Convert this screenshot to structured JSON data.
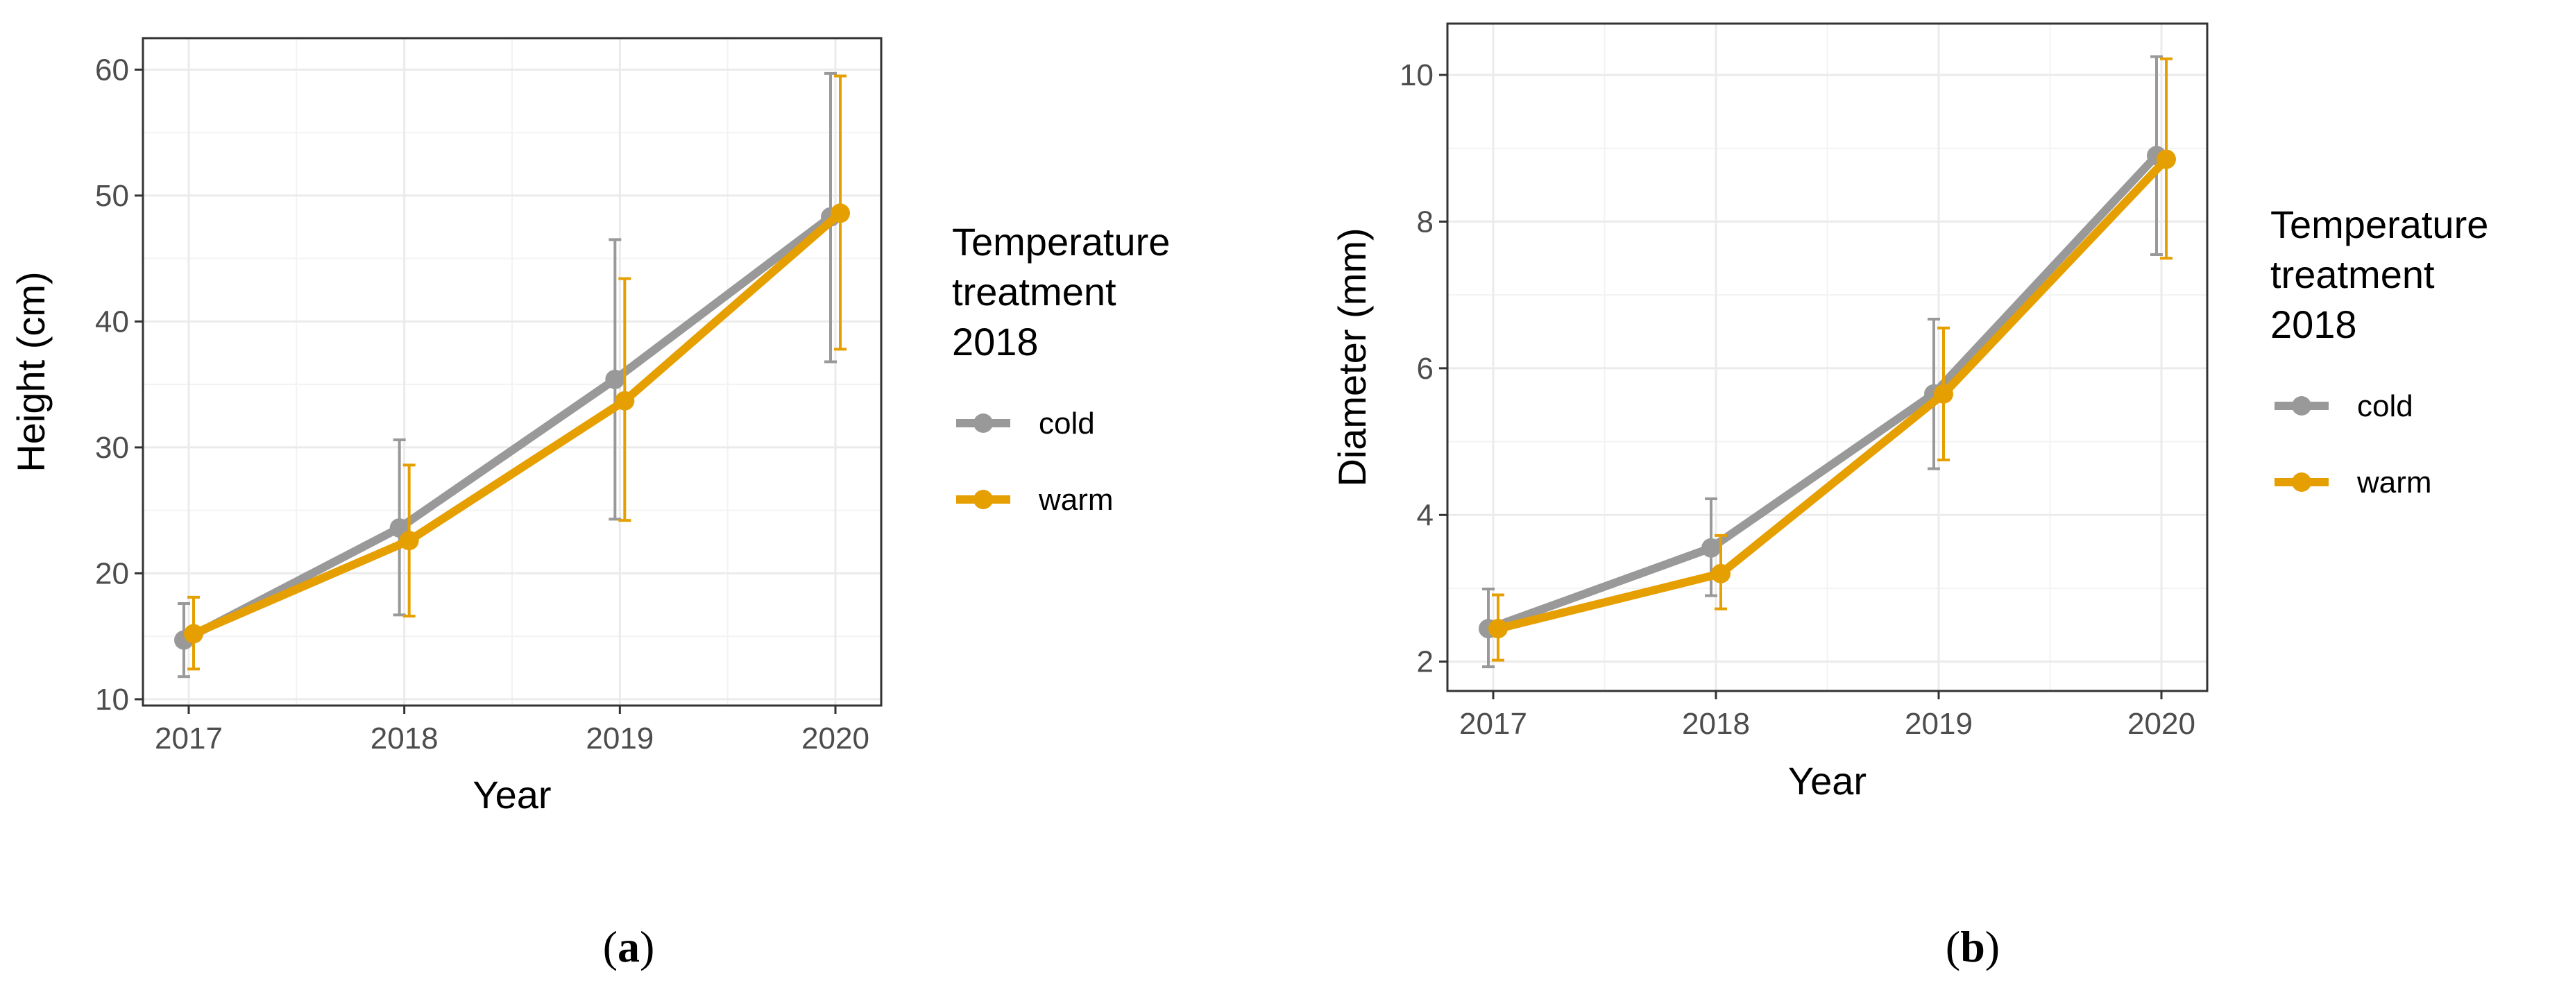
{
  "colors": {
    "cold": "#999999",
    "warm": "#E69F00",
    "grid_major": "#EBEBEB",
    "grid_minor": "#F3F3F3",
    "panel_border": "#333333",
    "tick_text": "#4D4D4D",
    "background": "#FFFFFF"
  },
  "chart_data": [
    {
      "type": "line",
      "panel": "a",
      "caption_open": "(",
      "caption_letter": "a",
      "caption_close": ")",
      "xlabel": "Year",
      "ylabel": "Height (cm)",
      "categories": [
        "2017",
        "2018",
        "2019",
        "2020"
      ],
      "ylim": [
        9.5,
        62.5
      ],
      "yticks": [
        10,
        20,
        30,
        40,
        50,
        60
      ],
      "legend": {
        "title_lines": [
          "Temperature",
          "treatment",
          "2018"
        ],
        "position": "right"
      },
      "series": [
        {
          "name": "cold",
          "color_key": "cold",
          "values": [
            14.7,
            23.6,
            35.4,
            48.3
          ],
          "error_low": [
            11.8,
            16.7,
            24.3,
            36.8
          ],
          "error_high": [
            17.6,
            30.6,
            46.5,
            59.7
          ]
        },
        {
          "name": "warm",
          "color_key": "warm",
          "values": [
            15.2,
            22.6,
            33.7,
            48.6
          ],
          "error_low": [
            12.4,
            16.6,
            24.2,
            37.8
          ],
          "error_high": [
            18.1,
            28.6,
            43.4,
            59.5
          ]
        }
      ]
    },
    {
      "type": "line",
      "panel": "b",
      "caption_open": "(",
      "caption_letter": "b",
      "caption_close": ")",
      "xlabel": "Year",
      "ylabel": "Diameter (mm)",
      "categories": [
        "2017",
        "2018",
        "2019",
        "2020"
      ],
      "ylim": [
        1.6,
        10.7
      ],
      "yticks": [
        2,
        4,
        6,
        8,
        10
      ],
      "legend": {
        "title_lines": [
          "Temperature",
          "treatment",
          "2018"
        ],
        "position": "right"
      },
      "series": [
        {
          "name": "cold",
          "color_key": "cold",
          "values": [
            2.45,
            3.55,
            5.65,
            8.9
          ],
          "error_low": [
            1.93,
            2.9,
            4.63,
            7.55
          ],
          "error_high": [
            2.99,
            4.22,
            6.67,
            10.25
          ]
        },
        {
          "name": "warm",
          "color_key": "warm",
          "values": [
            2.45,
            3.2,
            5.65,
            8.85
          ],
          "error_low": [
            2.02,
            2.72,
            4.75,
            7.5
          ],
          "error_high": [
            2.91,
            3.72,
            6.55,
            10.22
          ]
        }
      ]
    }
  ]
}
